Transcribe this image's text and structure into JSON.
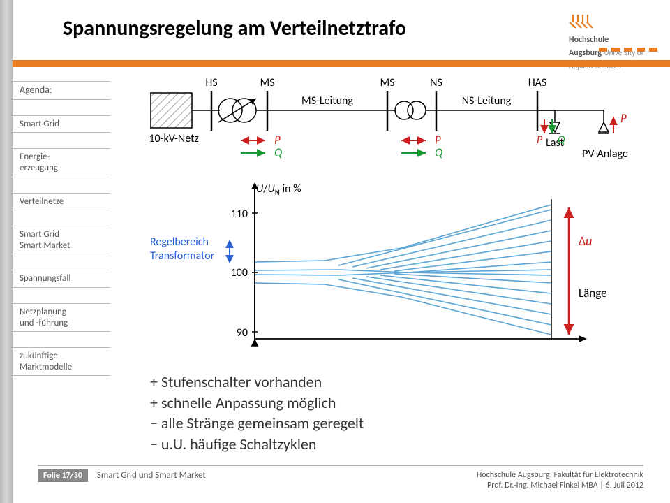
{
  "title": "Spannungsregelung am Verteilnetztrafo",
  "logo": {
    "line1": "Hochschule",
    "line2": "Augsburg",
    "line3": "University of",
    "line4": "Applied Sciences"
  },
  "sidebar": {
    "items": [
      {
        "label": "Agenda:"
      },
      {
        "label": "Smart Grid"
      },
      {
        "label": "Energie-\nerzeugung"
      },
      {
        "label": "Verteilnetze"
      },
      {
        "label": "Smart Grid\nSmart Market"
      },
      {
        "label": "Spannungsfall"
      },
      {
        "label": "Netzplanung\nund -führung"
      },
      {
        "label": "zukünftige\nMarktmodelle"
      }
    ]
  },
  "diagram": {
    "circuit": {
      "labels": {
        "hs": "HS",
        "ms": "MS",
        "ms2": "MS",
        "ns": "NS",
        "has": "HAS",
        "msleitung": "MS-Leitung",
        "nsleitung": "NS-Leitung",
        "netz": "110-kV-Netz",
        "last": "Last",
        "pv": "PV-Anlage"
      },
      "arrows": {
        "p": "P",
        "q": "Q",
        "p_color": "#cc2020",
        "q_color": "#1a9933"
      }
    },
    "chart": {
      "ylabel_html": "<tspan font-style='italic'>U</tspan>/<tspan font-style='italic'>U</tspan><tspan baseline-shift='sub' font-size='12'>N</tspan> in %",
      "yticks": [
        90,
        100,
        110
      ],
      "regel_label": "Regelbereich\nTransformator",
      "regel_color": "#2a5fd4",
      "du_label": "Δu",
      "du_color": "#cc2020",
      "length_label": "Länge",
      "band_color": "#5aa4d6",
      "band_fill": "none"
    }
  },
  "bullets": {
    "b1": "+ Stufenschalter vorhanden",
    "b2": "+ schnelle Anpassung möglich",
    "b3": "− alle Stränge gemeinsam geregelt",
    "b4": "− u.U. häufige Schaltzyklen"
  },
  "footer": {
    "folie": "Folie 17/30",
    "left": "Smart Grid und Smart Market",
    "right1": "Hochschule Augsburg, Fakultät für Elektrotechnik",
    "right2": "Prof. Dr.-Ing. Michael Finkel MBA | 6. Juli 2012"
  }
}
